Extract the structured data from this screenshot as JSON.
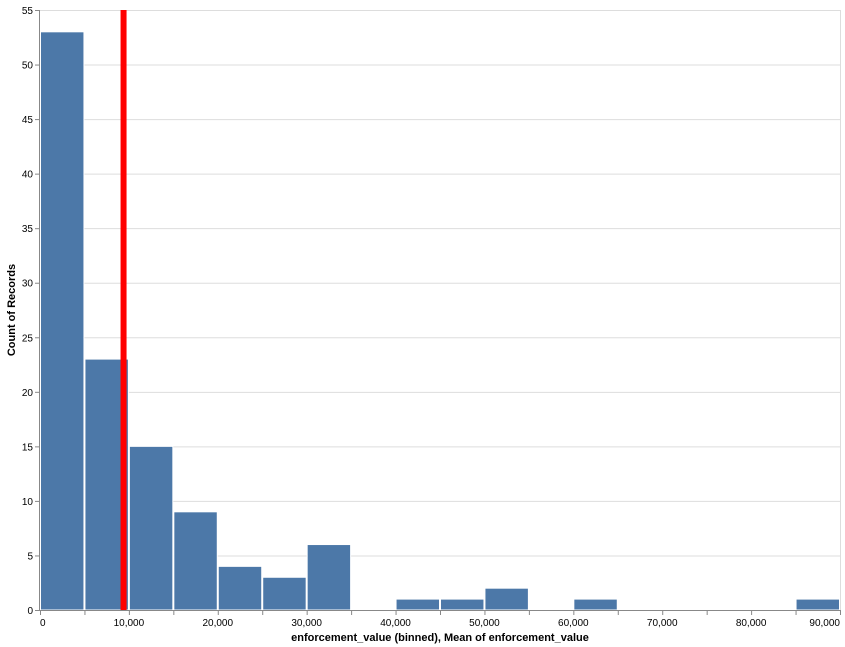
{
  "chart_data": {
    "type": "bar",
    "xlabel": "enforcement_value (binned), Mean of enforcement_value",
    "ylabel": "Count of Records",
    "xlim": [
      0,
      90000
    ],
    "ylim": [
      0,
      55
    ],
    "grid": true,
    "bin_width": 5000,
    "x_ticks": [
      0,
      10000,
      20000,
      30000,
      40000,
      50000,
      60000,
      70000,
      80000,
      90000
    ],
    "x_tick_labels": [
      "0",
      "10,000",
      "20,000",
      "30,000",
      "40,000",
      "50,000",
      "60,000",
      "70,000",
      "80,000",
      "90,000"
    ],
    "y_ticks": [
      0,
      5,
      10,
      15,
      20,
      25,
      30,
      35,
      40,
      45,
      50,
      55
    ],
    "y_tick_labels": [
      "0",
      "5",
      "10",
      "15",
      "20",
      "25",
      "30",
      "35",
      "40",
      "45",
      "50",
      "55"
    ],
    "bins": [
      {
        "start": 0,
        "end": 5000,
        "count": 53
      },
      {
        "start": 5000,
        "end": 10000,
        "count": 23
      },
      {
        "start": 10000,
        "end": 15000,
        "count": 15
      },
      {
        "start": 15000,
        "end": 20000,
        "count": 9
      },
      {
        "start": 20000,
        "end": 25000,
        "count": 4
      },
      {
        "start": 25000,
        "end": 30000,
        "count": 3
      },
      {
        "start": 30000,
        "end": 35000,
        "count": 6
      },
      {
        "start": 40000,
        "end": 45000,
        "count": 1
      },
      {
        "start": 45000,
        "end": 50000,
        "count": 1
      },
      {
        "start": 50000,
        "end": 55000,
        "count": 2
      },
      {
        "start": 60000,
        "end": 65000,
        "count": 1
      },
      {
        "start": 85000,
        "end": 90000,
        "count": 1
      }
    ],
    "mean_rule": {
      "value": 9400
    },
    "colors": {
      "bar": "#4c78a8",
      "rule": "#ff0000",
      "grid": "#dddddd",
      "axis": "#888888"
    }
  }
}
